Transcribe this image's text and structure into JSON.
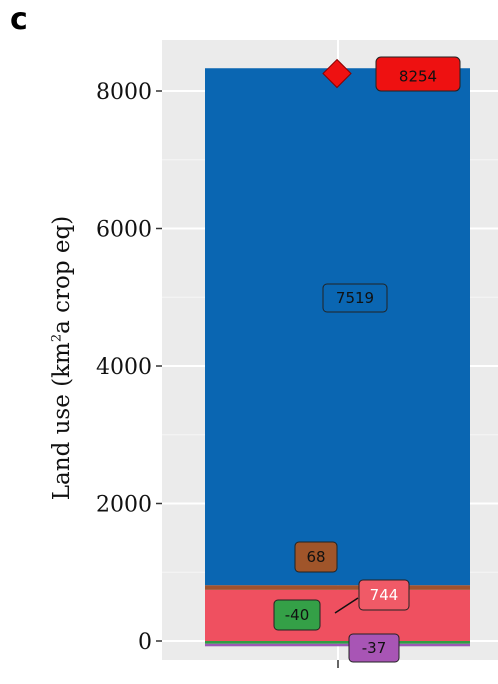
{
  "figure": {
    "panel_letter": "c",
    "ylabel_prefix": "Land use (km",
    "ylabel_sup": "2",
    "ylabel_suffix": "a crop eq)"
  },
  "chart_data": {
    "type": "bar",
    "stacked": true,
    "categories": [
      ""
    ],
    "ylabel": "Land use (km2a crop eq)",
    "ylim": [
      -120,
      8800
    ],
    "yticks": [
      0,
      2000,
      4000,
      6000,
      8000
    ],
    "grid": true,
    "series": [
      {
        "value": -37,
        "label": "-37",
        "color": "#9b59b6",
        "label_bg": "#a855b5",
        "label_color": "#111111"
      },
      {
        "value": -40,
        "label": "-40",
        "color": "#2e9e44",
        "label_bg": "#34a047",
        "label_color": "#111111"
      },
      {
        "value": 744,
        "label": "744",
        "color": "#ef5060",
        "label_bg": "#f05a67",
        "label_color": "#ffffff"
      },
      {
        "value": 68,
        "label": "68",
        "color": "#a0522d",
        "label_bg": "#a0552a",
        "label_color": "#111111"
      },
      {
        "value": 7519,
        "label": "7519",
        "color": "#0a66b2",
        "label_bg": "#0a66b2",
        "label_color": "#111111"
      }
    ],
    "total": {
      "value": 8254,
      "label": "8254",
      "marker": "diamond",
      "color": "#ee1111"
    }
  }
}
